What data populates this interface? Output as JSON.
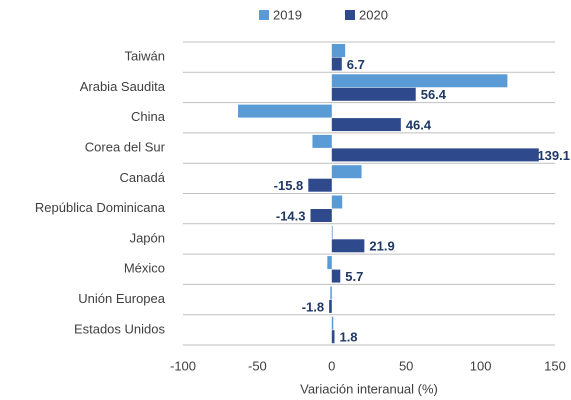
{
  "chart_data": {
    "type": "barh",
    "categories": [
      "Taiwán",
      "Arabia Saudita",
      "China",
      "Corea del Sur",
      "Canadá",
      "República Dominicana",
      "Japón",
      "México",
      "Unión Europea",
      "Estados Unidos"
    ],
    "series": [
      {
        "name": "2019",
        "color": "#5b9bd5",
        "values": [
          9,
          118,
          -63,
          -13,
          20,
          7,
          0,
          -3,
          -1,
          1
        ]
      },
      {
        "name": "2020",
        "color": "#2f4a8c",
        "values": [
          6.7,
          56.4,
          46.4,
          139.1,
          -15.8,
          -14.3,
          21.9,
          5.7,
          -1.8,
          1.8
        ],
        "data_labels": true
      }
    ],
    "xlim": [
      -100,
      150
    ],
    "xticks": [
      -100,
      -50,
      0,
      50,
      100,
      150
    ],
    "xlabel": "Variación interanual (%)",
    "legend": "top",
    "grid": true
  }
}
